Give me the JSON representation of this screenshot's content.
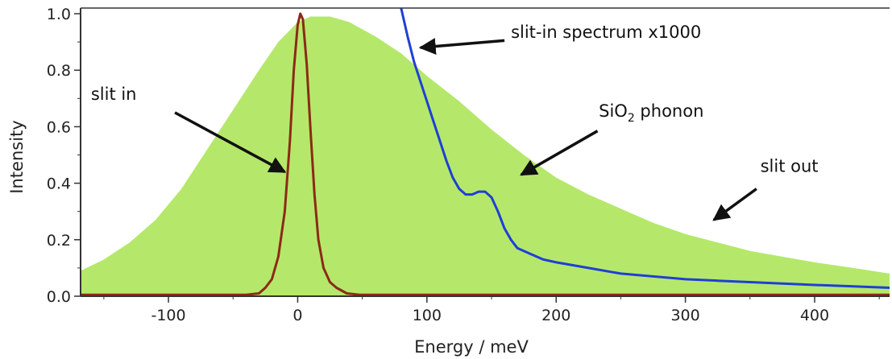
{
  "chart_data": {
    "type": "line",
    "title": "",
    "xlabel": "Energy / meV",
    "ylabel": "Intensity",
    "xlim": [
      -168,
      458
    ],
    "ylim": [
      0,
      1.02
    ],
    "x_ticks": [
      -100,
      0,
      100,
      200,
      300,
      400
    ],
    "x_tick_labels": [
      "-100",
      "0",
      "100",
      "200",
      "300",
      "400"
    ],
    "y_ticks": [
      0.0,
      0.2,
      0.4,
      0.6,
      0.8,
      1.0
    ],
    "y_tick_labels": [
      "0.0",
      "0.2",
      "0.4",
      "0.6",
      "0.8",
      "1.0"
    ],
    "grid": false,
    "series": [
      {
        "kind": "area",
        "color": "#b5e86a",
        "points": [
          [
            -168,
            0.09
          ],
          [
            -150,
            0.13
          ],
          [
            -130,
            0.19
          ],
          [
            -110,
            0.27
          ],
          [
            -90,
            0.38
          ],
          [
            -70,
            0.52
          ],
          [
            -50,
            0.66
          ],
          [
            -30,
            0.8
          ],
          [
            -15,
            0.9
          ],
          [
            0,
            0.97
          ],
          [
            10,
            0.99
          ],
          [
            25,
            0.99
          ],
          [
            40,
            0.97
          ],
          [
            60,
            0.92
          ],
          [
            80,
            0.86
          ],
          [
            100,
            0.78
          ],
          [
            125,
            0.69
          ],
          [
            150,
            0.59
          ],
          [
            175,
            0.5
          ],
          [
            200,
            0.42
          ],
          [
            225,
            0.36
          ],
          [
            250,
            0.31
          ],
          [
            275,
            0.26
          ],
          [
            300,
            0.22
          ],
          [
            325,
            0.19
          ],
          [
            350,
            0.16
          ],
          [
            375,
            0.14
          ],
          [
            400,
            0.12
          ],
          [
            430,
            0.1
          ],
          [
            458,
            0.08
          ]
        ]
      },
      {
        "kind": "line",
        "color": "#1f3fd6",
        "points": [
          [
            80,
            1.02
          ],
          [
            85,
            0.92
          ],
          [
            90,
            0.83
          ],
          [
            95,
            0.76
          ],
          [
            100,
            0.69
          ],
          [
            105,
            0.62
          ],
          [
            110,
            0.55
          ],
          [
            115,
            0.48
          ],
          [
            120,
            0.42
          ],
          [
            125,
            0.38
          ],
          [
            130,
            0.36
          ],
          [
            135,
            0.36
          ],
          [
            140,
            0.37
          ],
          [
            145,
            0.37
          ],
          [
            150,
            0.35
          ],
          [
            155,
            0.3
          ],
          [
            160,
            0.24
          ],
          [
            165,
            0.2
          ],
          [
            170,
            0.17
          ],
          [
            180,
            0.15
          ],
          [
            190,
            0.13
          ],
          [
            200,
            0.12
          ],
          [
            225,
            0.1
          ],
          [
            250,
            0.08
          ],
          [
            275,
            0.07
          ],
          [
            300,
            0.06
          ],
          [
            325,
            0.055
          ],
          [
            350,
            0.05
          ],
          [
            375,
            0.045
          ],
          [
            400,
            0.04
          ],
          [
            430,
            0.035
          ],
          [
            458,
            0.03
          ]
        ]
      },
      {
        "kind": "line",
        "color": "#8b2a16",
        "points": [
          [
            -168,
            0.005
          ],
          [
            -40,
            0.005
          ],
          [
            -30,
            0.01
          ],
          [
            -25,
            0.03
          ],
          [
            -20,
            0.06
          ],
          [
            -15,
            0.14
          ],
          [
            -10,
            0.3
          ],
          [
            -6,
            0.55
          ],
          [
            -3,
            0.8
          ],
          [
            0,
            0.96
          ],
          [
            2,
            1.0
          ],
          [
            4,
            0.98
          ],
          [
            7,
            0.82
          ],
          [
            10,
            0.58
          ],
          [
            13,
            0.36
          ],
          [
            16,
            0.2
          ],
          [
            20,
            0.1
          ],
          [
            25,
            0.05
          ],
          [
            30,
            0.03
          ],
          [
            38,
            0.01
          ],
          [
            48,
            0.005
          ],
          [
            458,
            0.005
          ]
        ]
      }
    ],
    "annotations": [
      {
        "id": "slit-in",
        "text": "slit in",
        "tx": -160,
        "ty": 0.695,
        "ax": -95,
        "ay": 0.65,
        "hx": -10,
        "hy": 0.44
      },
      {
        "id": "spectrum",
        "text": "slit-in spectrum x1000",
        "tx": 165,
        "ty": 0.915,
        "ax": 160,
        "ay": 0.905,
        "hx": 95,
        "hy": 0.88
      },
      {
        "id": "sio2",
        "text": "SiO",
        "sub": "2",
        "tail": " phonon",
        "tx": 233,
        "ty": 0.635,
        "ax": 232,
        "ay": 0.585,
        "hx": 173,
        "hy": 0.43
      },
      {
        "id": "slit-out",
        "text": "slit out",
        "tx": 358,
        "ty": 0.44,
        "ax": 355,
        "ay": 0.38,
        "hx": 322,
        "hy": 0.27
      }
    ]
  }
}
